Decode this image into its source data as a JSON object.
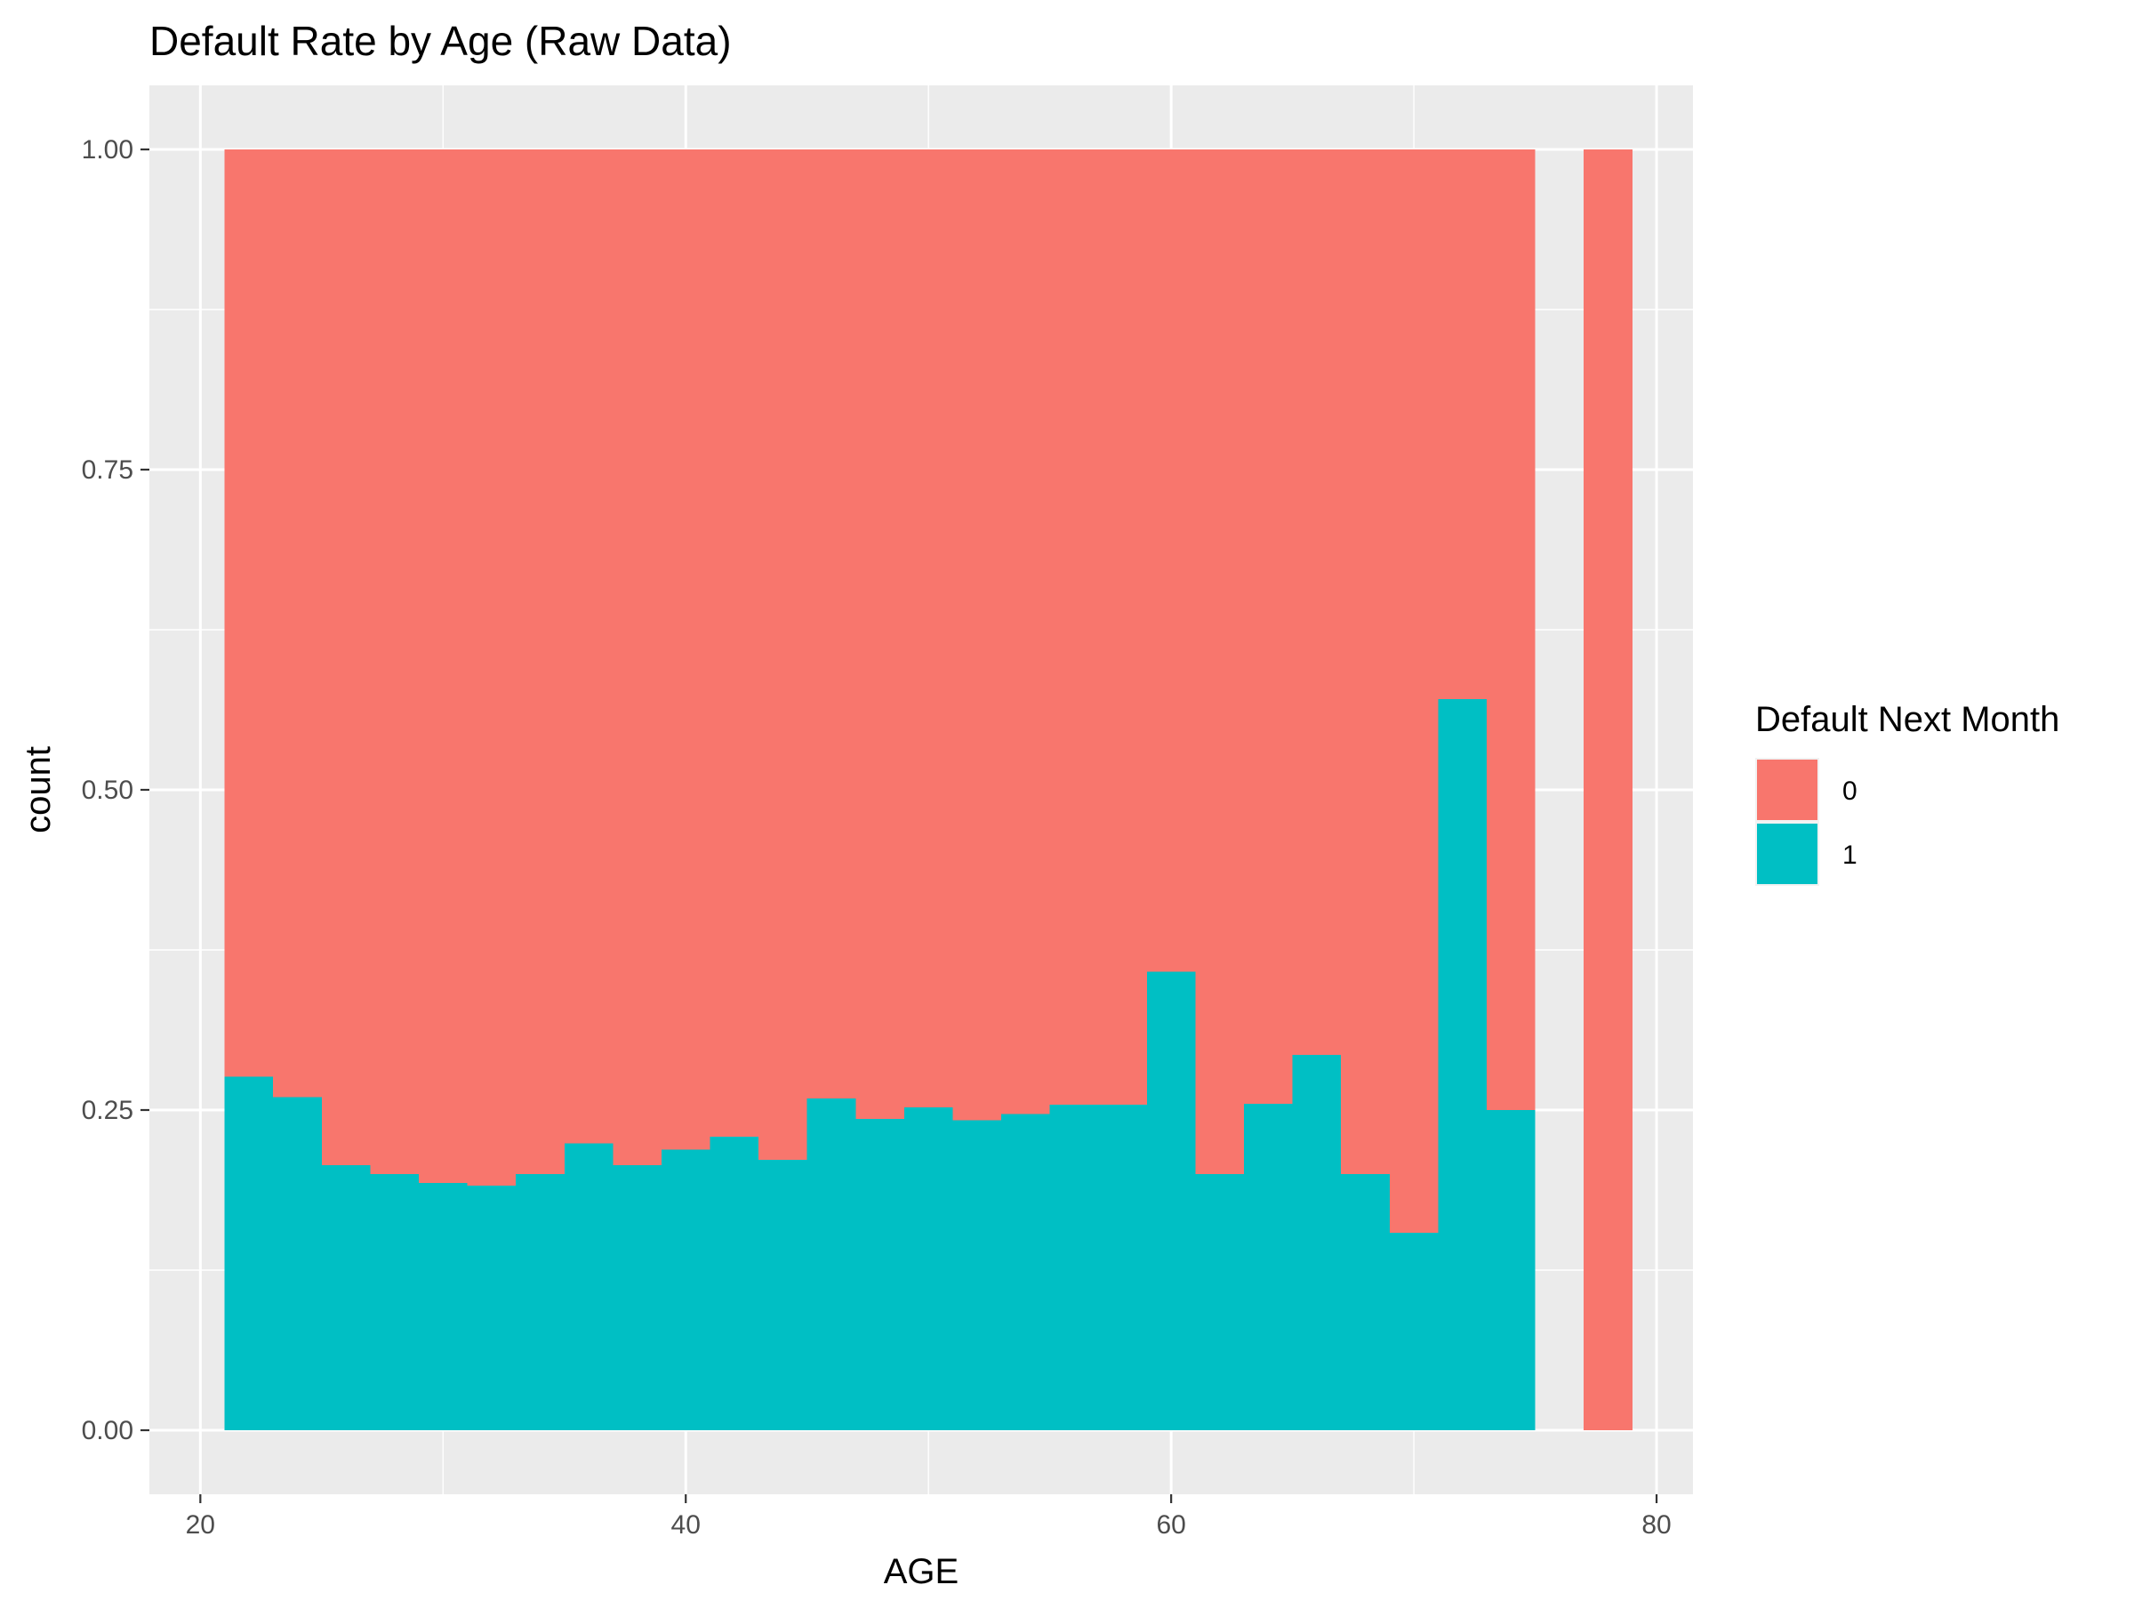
{
  "chart_data": {
    "type": "bar",
    "title": "Default Rate by Age (Raw Data)",
    "xlabel": "AGE",
    "ylabel": "count",
    "xlim": [
      17.9,
      81.5
    ],
    "ylim": [
      -0.05,
      1.05
    ],
    "x_ticks": [
      20,
      40,
      60,
      80
    ],
    "y_ticks": [
      0.0,
      0.25,
      0.5,
      0.75,
      1.0
    ],
    "x_tick_labels": [
      "20",
      "40",
      "60",
      "80"
    ],
    "y_tick_labels": [
      "0.00",
      "0.25",
      "0.50",
      "0.75",
      "1.00"
    ],
    "grid": true,
    "legend": {
      "title": "Default Next Month",
      "position": "right",
      "entries": [
        {
          "label": "0",
          "color": "#F8766D"
        },
        {
          "label": "1",
          "color": "#00BFC4"
        }
      ]
    },
    "bin_width": 2,
    "bin_starts": [
      21,
      23,
      25,
      27,
      29,
      31,
      33,
      35,
      37,
      39,
      41,
      43,
      45,
      47,
      49,
      51,
      53,
      55,
      57,
      59,
      61,
      63,
      65,
      67,
      69,
      71,
      73,
      75,
      77
    ],
    "series": [
      {
        "name": "0",
        "color": "#F8766D",
        "values": [
          0.724,
          0.74,
          0.793,
          0.8,
          0.807,
          0.809,
          0.8,
          0.776,
          0.793,
          0.781,
          0.771,
          0.789,
          0.741,
          0.757,
          0.748,
          0.758,
          0.753,
          0.746,
          0.746,
          0.642,
          0.8,
          0.745,
          0.707,
          0.8,
          0.846,
          0.429,
          0.75,
          0.0,
          1.0
        ]
      },
      {
        "name": "1",
        "color": "#00BFC4",
        "values": [
          0.276,
          0.26,
          0.207,
          0.2,
          0.193,
          0.191,
          0.2,
          0.224,
          0.207,
          0.219,
          0.229,
          0.211,
          0.259,
          0.243,
          0.252,
          0.242,
          0.247,
          0.254,
          0.254,
          0.358,
          0.2,
          0.255,
          0.293,
          0.2,
          0.154,
          0.571,
          0.25,
          0.0,
          0.0
        ]
      }
    ]
  }
}
